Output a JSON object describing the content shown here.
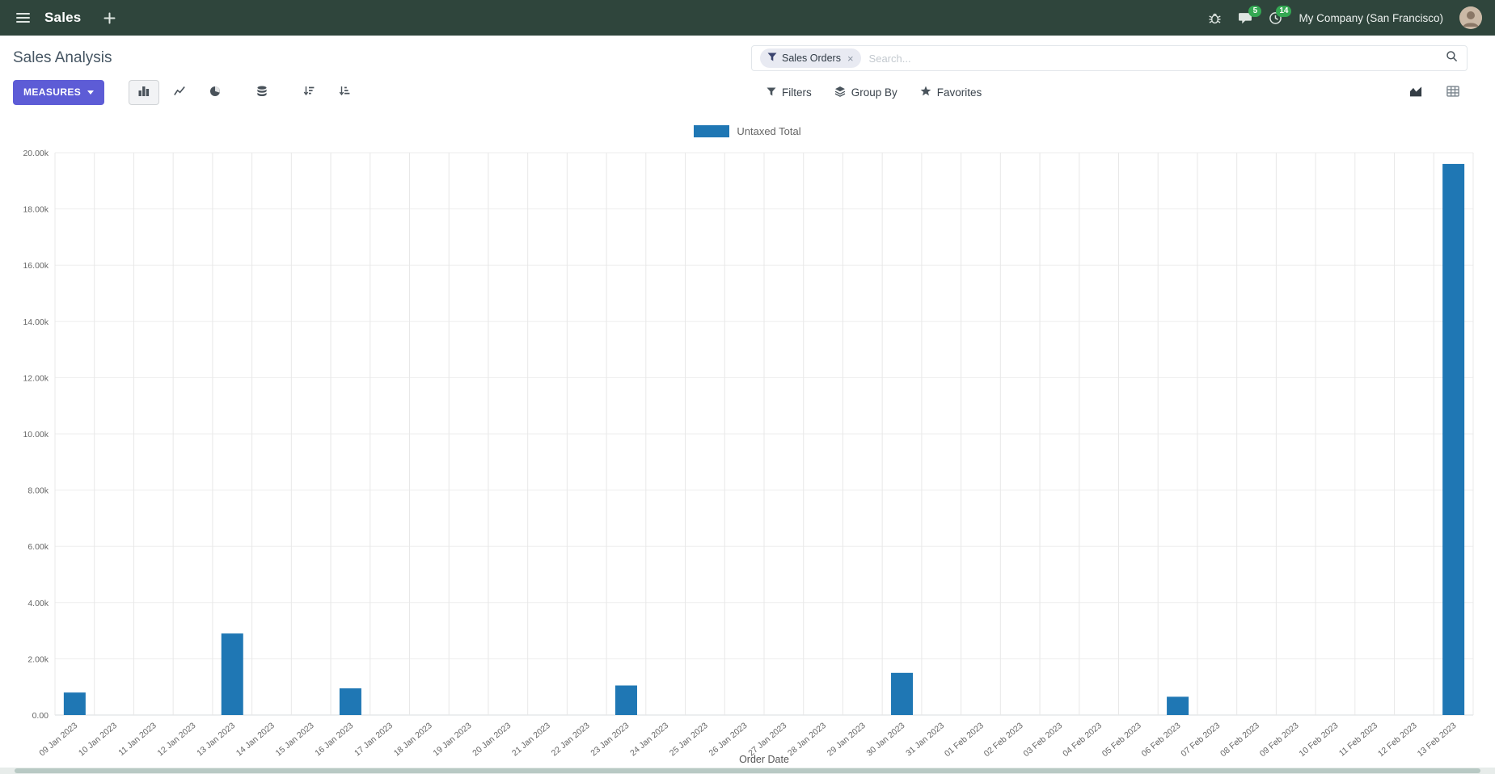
{
  "topbar": {
    "app_name": "Sales",
    "company_name": "My Company (San Francisco)",
    "messages_badge": "5",
    "activities_badge": "14"
  },
  "control_panel": {
    "title": "Sales Analysis",
    "measures_button": "MEASURES",
    "filters_button": "Filters",
    "group_by_button": "Group By",
    "favorites_button": "Favorites",
    "search": {
      "facet_label": "Sales Orders",
      "facet_remove": "×",
      "placeholder": "Search..."
    }
  },
  "icons": {
    "menu-icon": "☰",
    "plus-icon": "+",
    "bug-icon": "bug",
    "messages-icon": "speech-bubble",
    "activities-icon": "clock",
    "search-icon": "magnifier",
    "filter-icon": "funnel",
    "group-by-icon": "layers",
    "favorites-icon": "star",
    "bar-chart-icon": "bars",
    "line-chart-icon": "line",
    "pie-chart-icon": "pie",
    "stacked-icon": "database",
    "sort-descending-icon": "arrow-down-bars-desc",
    "sort-ascending-icon": "arrow-down-bars-asc",
    "graph-view-icon": "area-chart",
    "pivot-view-icon": "table-grid"
  },
  "colors": {
    "topbar_bg": "#2f453c",
    "primary_button": "#5d5cd6",
    "badge_green": "#34a853",
    "bar_blue": "#1f77b4"
  },
  "chart_data": {
    "type": "bar",
    "title": "",
    "xlabel": "Order Date",
    "ylabel": "",
    "ylim": [
      0,
      20000
    ],
    "ytick_labels": [
      "0.00",
      "2.00k",
      "4.00k",
      "6.00k",
      "8.00k",
      "10.00k",
      "12.00k",
      "14.00k",
      "16.00k",
      "18.00k",
      "20.00k"
    ],
    "grid": true,
    "legend_position": "top",
    "categories": [
      "09 Jan 2023",
      "10 Jan 2023",
      "11 Jan 2023",
      "12 Jan 2023",
      "13 Jan 2023",
      "14 Jan 2023",
      "15 Jan 2023",
      "16 Jan 2023",
      "17 Jan 2023",
      "18 Jan 2023",
      "19 Jan 2023",
      "20 Jan 2023",
      "21 Jan 2023",
      "22 Jan 2023",
      "23 Jan 2023",
      "24 Jan 2023",
      "25 Jan 2023",
      "26 Jan 2023",
      "27 Jan 2023",
      "28 Jan 2023",
      "29 Jan 2023",
      "30 Jan 2023",
      "31 Jan 2023",
      "01 Feb 2023",
      "02 Feb 2023",
      "03 Feb 2023",
      "04 Feb 2023",
      "05 Feb 2023",
      "06 Feb 2023",
      "07 Feb 2023",
      "08 Feb 2023",
      "09 Feb 2023",
      "10 Feb 2023",
      "11 Feb 2023",
      "12 Feb 2023",
      "13 Feb 2023"
    ],
    "series": [
      {
        "name": "Untaxed Total",
        "color": "#1f77b4",
        "values": [
          800,
          0,
          0,
          0,
          2900,
          0,
          0,
          950,
          0,
          0,
          0,
          0,
          0,
          0,
          1050,
          0,
          0,
          0,
          0,
          0,
          0,
          1500,
          0,
          0,
          0,
          0,
          0,
          0,
          650,
          0,
          0,
          0,
          0,
          0,
          0,
          19600
        ]
      }
    ]
  }
}
